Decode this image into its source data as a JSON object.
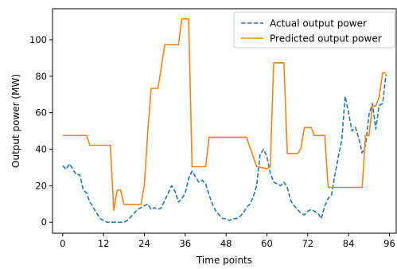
{
  "chart_data": {
    "type": "line",
    "xlabel": "Time points",
    "ylabel": "Output power (MW)",
    "xlim": [
      -3,
      98
    ],
    "ylim": [
      -6,
      117
    ],
    "xticks": [
      0,
      12,
      24,
      36,
      48,
      60,
      72,
      84,
      96
    ],
    "yticks": [
      0,
      20,
      40,
      60,
      80,
      100
    ],
    "grid": false,
    "legend_position": "top-right",
    "series": [
      {
        "name": "Actual output power",
        "color": "#1f77b4",
        "style": "dashed",
        "x": [
          0,
          1,
          2,
          3,
          4,
          5,
          6,
          7,
          8,
          9,
          10,
          11,
          12,
          13,
          14,
          15,
          16,
          17,
          18,
          19,
          20,
          21,
          22,
          23,
          24,
          25,
          26,
          27,
          28,
          29,
          30,
          31,
          32,
          33,
          34,
          35,
          36,
          37,
          38,
          39,
          40,
          41,
          42,
          43,
          44,
          45,
          46,
          47,
          48,
          49,
          50,
          51,
          52,
          53,
          54,
          55,
          56,
          57,
          58,
          59,
          60,
          61,
          62,
          63,
          64,
          65,
          66,
          67,
          68,
          69,
          70,
          71,
          72,
          73,
          74,
          75,
          76,
          77,
          78,
          79,
          80,
          81,
          82,
          83,
          84,
          85,
          86,
          87,
          88,
          89,
          90,
          91,
          92,
          93,
          94,
          95
        ],
        "y": [
          31,
          29,
          32,
          29,
          26,
          26,
          18,
          16,
          11,
          8,
          5,
          2,
          1,
          0,
          0,
          0,
          0,
          0,
          0,
          1,
          3,
          5,
          7,
          8,
          9,
          10,
          7,
          8,
          7,
          8,
          12,
          16,
          20,
          17,
          11,
          13,
          16,
          24,
          28,
          25,
          22,
          23,
          21,
          15,
          10,
          6,
          4,
          2,
          2,
          1,
          2,
          2,
          3,
          5,
          8,
          10,
          14,
          20,
          37,
          40,
          36,
          27,
          22,
          21,
          20,
          22,
          19,
          12,
          9,
          7,
          5,
          4,
          6,
          7,
          6,
          5,
          2,
          9,
          13,
          15,
          26,
          36,
          45,
          69,
          60,
          50,
          52,
          46,
          38,
          42,
          59,
          65,
          51,
          64,
          65,
          81
        ]
      },
      {
        "name": "Predicted output power",
        "color": "#ff7f0e",
        "style": "solid",
        "x": [
          0,
          7,
          8,
          14,
          15,
          16,
          17,
          18,
          19,
          20,
          21,
          22,
          23,
          24,
          25,
          26,
          27,
          28,
          30,
          31,
          32,
          33,
          34,
          35,
          36,
          37,
          38,
          42,
          43,
          47,
          54,
          57,
          60,
          61,
          62,
          63,
          64,
          65,
          66,
          67,
          68,
          69,
          70,
          71,
          72,
          73,
          74,
          75,
          76,
          77,
          78,
          79,
          80,
          81,
          82,
          83,
          84,
          85,
          86,
          87,
          88,
          89,
          90,
          91,
          92,
          93,
          94,
          95
        ],
        "y": [
          47.5,
          47.5,
          42.2,
          42.2,
          6.5,
          17.6,
          17.6,
          9.8,
          9.8,
          9.8,
          9.8,
          9.8,
          9.8,
          20.5,
          49.9,
          73.4,
          73.4,
          73.4,
          97.3,
          97.3,
          97.3,
          97.3,
          97.3,
          111.4,
          111.4,
          111.4,
          30.4,
          30.4,
          46.6,
          46.6,
          46.6,
          30.5,
          29.3,
          30.3,
          87.4,
          87.4,
          87.4,
          87.4,
          37.7,
          37.7,
          37.7,
          37.7,
          40.3,
          51.9,
          51.9,
          51.9,
          47.5,
          47.5,
          47.5,
          47.5,
          19.1,
          19.1,
          19.1,
          19.1,
          19.1,
          19.1,
          19.1,
          19.1,
          19.1,
          19.1,
          19.1,
          47.5,
          47.5,
          63.7,
          63.7,
          68.6,
          81.8,
          81.8
        ]
      }
    ]
  }
}
